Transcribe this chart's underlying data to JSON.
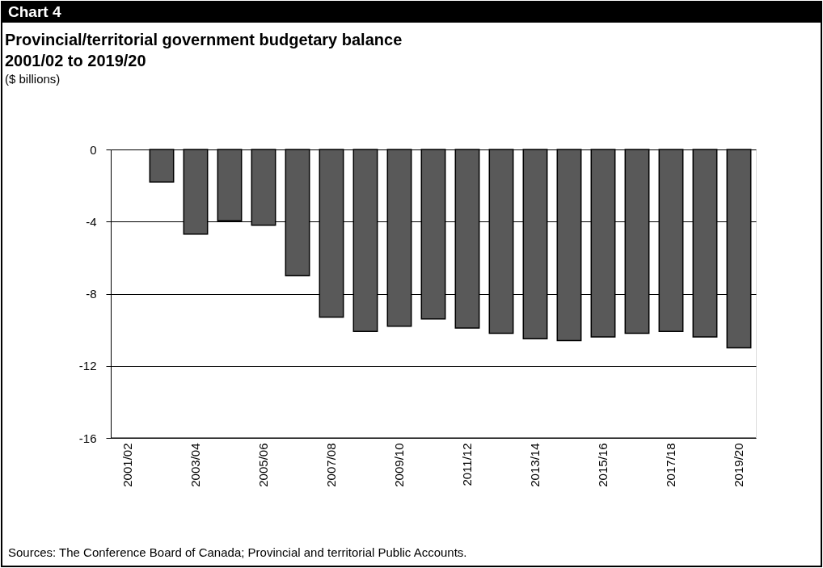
{
  "chart_data": {
    "type": "bar",
    "title": "Provincial/territorial government budgetary balance",
    "subtitle": "2001/02 to 2019/20",
    "ylabel": "($ billions)",
    "annotations": [
      "Chart 4",
      "Sources: The Conference Board of Canada; Provincial and territorial Public Accounts."
    ],
    "categories": [
      "2001/02",
      null,
      "2003/04",
      null,
      "2005/06",
      null,
      "2007/08",
      null,
      "2009/10",
      null,
      "2011/12",
      null,
      "2013/14",
      null,
      "2015/16",
      null,
      "2017/18",
      null,
      "2019/20"
    ],
    "values": [
      null,
      -1.8,
      -4.7,
      -3.95,
      -4.2,
      -7.0,
      -9.3,
      -10.1,
      -9.8,
      -9.4,
      -9.9,
      -10.2,
      -10.5,
      -10.6,
      -10.4,
      -10.2,
      -10.1,
      -10.4,
      -11.0
    ],
    "color": "#595959",
    "ylim": [
      -16,
      0
    ],
    "yticks": [
      0,
      -4,
      -8,
      -12,
      -16
    ],
    "grid": "y"
  }
}
